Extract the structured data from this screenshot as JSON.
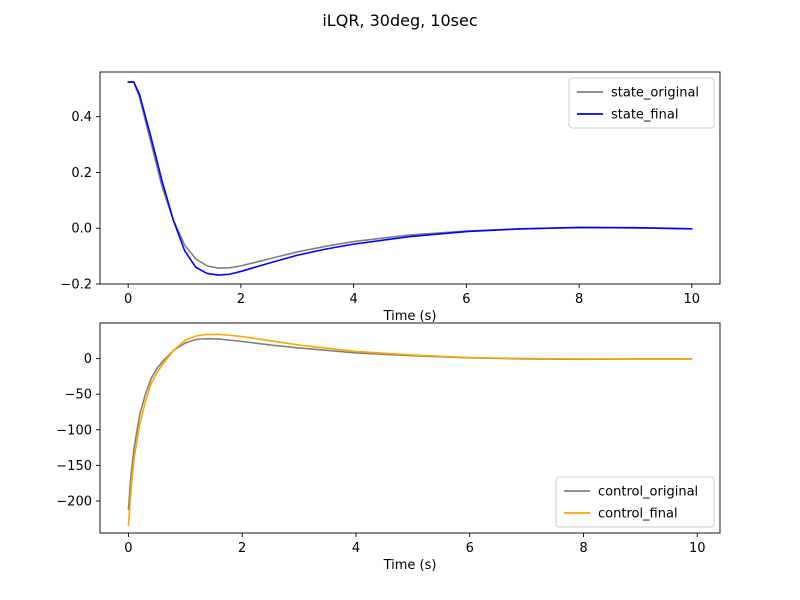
{
  "figure_title": "iLQR, 30deg, 10sec",
  "chart_data": [
    {
      "type": "line",
      "title": "",
      "xlabel": "Time (s)",
      "ylabel": "",
      "xlim": [
        -0.5,
        10.5
      ],
      "ylim": [
        -0.2,
        0.56
      ],
      "xticks": [
        0,
        2,
        4,
        6,
        8,
        10
      ],
      "yticks": [
        -0.2,
        0.0,
        0.2,
        0.4
      ],
      "ytick_labels": [
        "−0.2",
        "0.0",
        "0.2",
        "0.4"
      ],
      "xtick_labels": [
        "0",
        "2",
        "4",
        "6",
        "8",
        "10"
      ],
      "grid": false,
      "legend_position": "top-right",
      "series": [
        {
          "name": "state_original",
          "color": "#808080",
          "x": [
            0,
            0.1,
            0.2,
            0.4,
            0.6,
            0.8,
            1.0,
            1.2,
            1.4,
            1.6,
            1.8,
            2.0,
            2.5,
            3.0,
            3.5,
            4.0,
            5.0,
            6.0,
            7.0,
            8.0,
            9.0,
            10.0
          ],
          "y": [
            0.524,
            0.524,
            0.47,
            0.31,
            0.15,
            0.03,
            -0.06,
            -0.11,
            -0.135,
            -0.143,
            -0.142,
            -0.135,
            -0.11,
            -0.085,
            -0.065,
            -0.048,
            -0.024,
            -0.01,
            -0.002,
            0.002,
            0.001,
            -0.002
          ]
        },
        {
          "name": "state_final",
          "color": "#0000ff",
          "x": [
            0,
            0.1,
            0.2,
            0.4,
            0.6,
            0.8,
            1.0,
            1.2,
            1.4,
            1.6,
            1.8,
            2.0,
            2.5,
            3.0,
            3.5,
            4.0,
            5.0,
            6.0,
            7.0,
            8.0,
            9.0,
            10.0
          ],
          "y": [
            0.524,
            0.524,
            0.48,
            0.33,
            0.17,
            0.03,
            -0.08,
            -0.14,
            -0.162,
            -0.168,
            -0.165,
            -0.155,
            -0.125,
            -0.097,
            -0.075,
            -0.057,
            -0.03,
            -0.012,
            -0.002,
            0.003,
            0.002,
            -0.002
          ]
        }
      ]
    },
    {
      "type": "line",
      "title": "",
      "xlabel": "Time (s)",
      "ylabel": "",
      "xlim": [
        -0.5,
        10.4
      ],
      "ylim": [
        -245,
        50
      ],
      "xticks": [
        0,
        2,
        4,
        6,
        8,
        10
      ],
      "yticks": [
        -200,
        -150,
        -100,
        -50,
        0
      ],
      "ytick_labels": [
        "−200",
        "−150",
        "−100",
        "−50",
        "0"
      ],
      "xtick_labels": [
        "0",
        "2",
        "4",
        "6",
        "8",
        "10"
      ],
      "grid": false,
      "legend_position": "bottom-right",
      "series": [
        {
          "name": "control_original",
          "color": "#808080",
          "x": [
            0,
            0.05,
            0.1,
            0.2,
            0.3,
            0.4,
            0.5,
            0.6,
            0.8,
            1.0,
            1.2,
            1.4,
            1.6,
            2.0,
            2.5,
            3.0,
            4.0,
            5.0,
            6.0,
            7.0,
            8.0,
            9.0,
            9.9
          ],
          "y": [
            -212,
            -160,
            -125,
            -78,
            -50,
            -28,
            -14,
            -4,
            12,
            22,
            27,
            28,
            27.5,
            24,
            19,
            15,
            8,
            4,
            1,
            -0.5,
            -1,
            -0.5,
            -0.5
          ]
        },
        {
          "name": "control_final",
          "color": "#ffa500",
          "x": [
            0,
            0.05,
            0.1,
            0.2,
            0.3,
            0.4,
            0.5,
            0.6,
            0.8,
            1.0,
            1.2,
            1.4,
            1.6,
            2.0,
            2.5,
            3.0,
            4.0,
            5.0,
            6.0,
            7.0,
            8.0,
            9.0,
            9.9
          ],
          "y": [
            -234,
            -180,
            -140,
            -92,
            -60,
            -35,
            -20,
            -8,
            12,
            26,
            32,
            34,
            34,
            31,
            25,
            19,
            10,
            5,
            1.5,
            0,
            -0.5,
            -0.5,
            -0.5
          ]
        }
      ]
    }
  ]
}
